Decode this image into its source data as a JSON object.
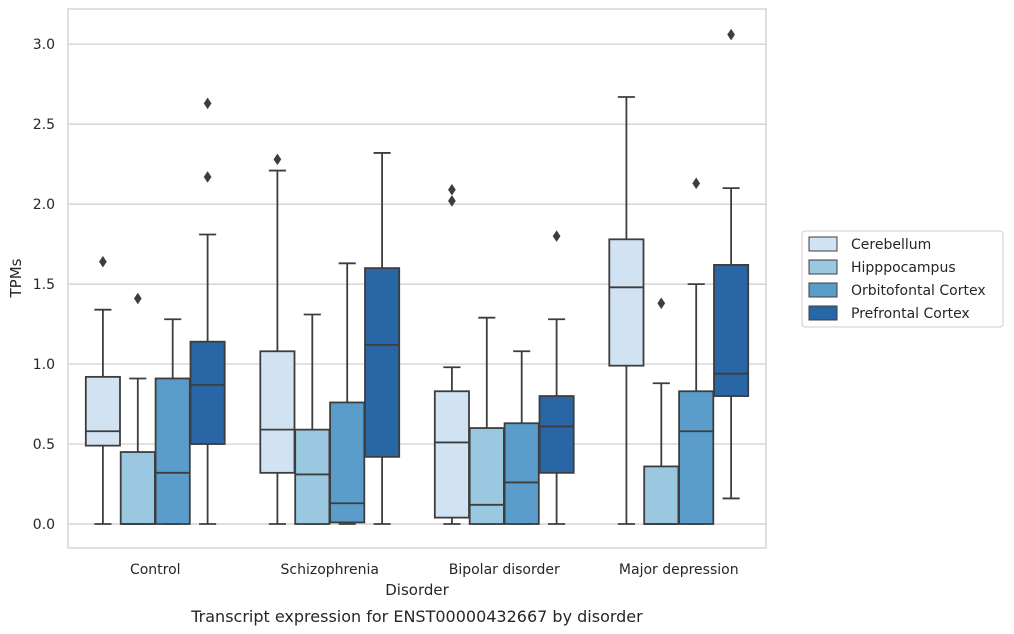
{
  "chart_data": {
    "type": "box",
    "caption": "Transcript expression for ENST00000432667 by disorder",
    "xlabel": "Disorder",
    "ylabel": "TPMs",
    "ylim": [
      -0.15,
      3.22
    ],
    "yticks": [
      "0.0",
      "0.5",
      "1.0",
      "1.5",
      "2.0",
      "2.5",
      "3.0"
    ],
    "grid": true,
    "legend_position": "right",
    "categories": [
      "Control",
      "Schizophrenia",
      "Bipolar disorder",
      "Major depression"
    ],
    "series": [
      {
        "name": "Cerebellum",
        "color": "#d1e2f2",
        "boxes": [
          {
            "whislo": 0.0,
            "q1": 0.49,
            "med": 0.58,
            "q3": 0.92,
            "whishi": 1.34,
            "fliers": [
              1.64
            ]
          },
          {
            "whislo": 0.0,
            "q1": 0.32,
            "med": 0.59,
            "q3": 1.08,
            "whishi": 2.21,
            "fliers": [
              2.28
            ]
          },
          {
            "whislo": 0.0,
            "q1": 0.04,
            "med": 0.51,
            "q3": 0.83,
            "whishi": 0.98,
            "fliers": [
              2.02,
              2.09
            ]
          },
          {
            "whislo": 0.0,
            "q1": 0.99,
            "med": 1.48,
            "q3": 1.78,
            "whishi": 2.67,
            "fliers": []
          }
        ]
      },
      {
        "name": "Hipppocampus",
        "color": "#9ac8e0",
        "boxes": [
          {
            "whislo": 0.0,
            "q1": 0.0,
            "med": 0.0,
            "q3": 0.45,
            "whishi": 0.91,
            "fliers": [
              1.41
            ]
          },
          {
            "whislo": 0.0,
            "q1": 0.0,
            "med": 0.31,
            "q3": 0.59,
            "whishi": 1.31,
            "fliers": []
          },
          {
            "whislo": 0.0,
            "q1": 0.0,
            "med": 0.12,
            "q3": 0.6,
            "whishi": 1.29,
            "fliers": []
          },
          {
            "whislo": 0.0,
            "q1": 0.0,
            "med": 0.0,
            "q3": 0.36,
            "whishi": 0.88,
            "fliers": [
              1.38
            ]
          }
        ]
      },
      {
        "name": "Orbitofontal Cortex",
        "color": "#5a9dcb",
        "boxes": [
          {
            "whislo": 0.0,
            "q1": 0.0,
            "med": 0.32,
            "q3": 0.91,
            "whishi": 1.28,
            "fliers": []
          },
          {
            "whislo": 0.0,
            "q1": 0.01,
            "med": 0.13,
            "q3": 0.76,
            "whishi": 1.63,
            "fliers": []
          },
          {
            "whislo": 0.0,
            "q1": 0.0,
            "med": 0.26,
            "q3": 0.63,
            "whishi": 1.08,
            "fliers": []
          },
          {
            "whislo": 0.0,
            "q1": 0.0,
            "med": 0.58,
            "q3": 0.83,
            "whishi": 1.5,
            "fliers": [
              2.13
            ]
          }
        ]
      },
      {
        "name": "Prefrontal Cortex",
        "color": "#2866a6",
        "boxes": [
          {
            "whislo": 0.0,
            "q1": 0.5,
            "med": 0.87,
            "q3": 1.14,
            "whishi": 1.81,
            "fliers": [
              2.17,
              2.63
            ]
          },
          {
            "whislo": 0.0,
            "q1": 0.42,
            "med": 1.12,
            "q3": 1.6,
            "whishi": 2.32,
            "fliers": []
          },
          {
            "whislo": 0.0,
            "q1": 0.32,
            "med": 0.61,
            "q3": 0.8,
            "whishi": 1.28,
            "fliers": [
              1.8
            ]
          },
          {
            "whislo": 0.16,
            "q1": 0.8,
            "med": 0.94,
            "q3": 1.62,
            "whishi": 2.1,
            "fliers": [
              3.06
            ]
          }
        ]
      }
    ]
  }
}
